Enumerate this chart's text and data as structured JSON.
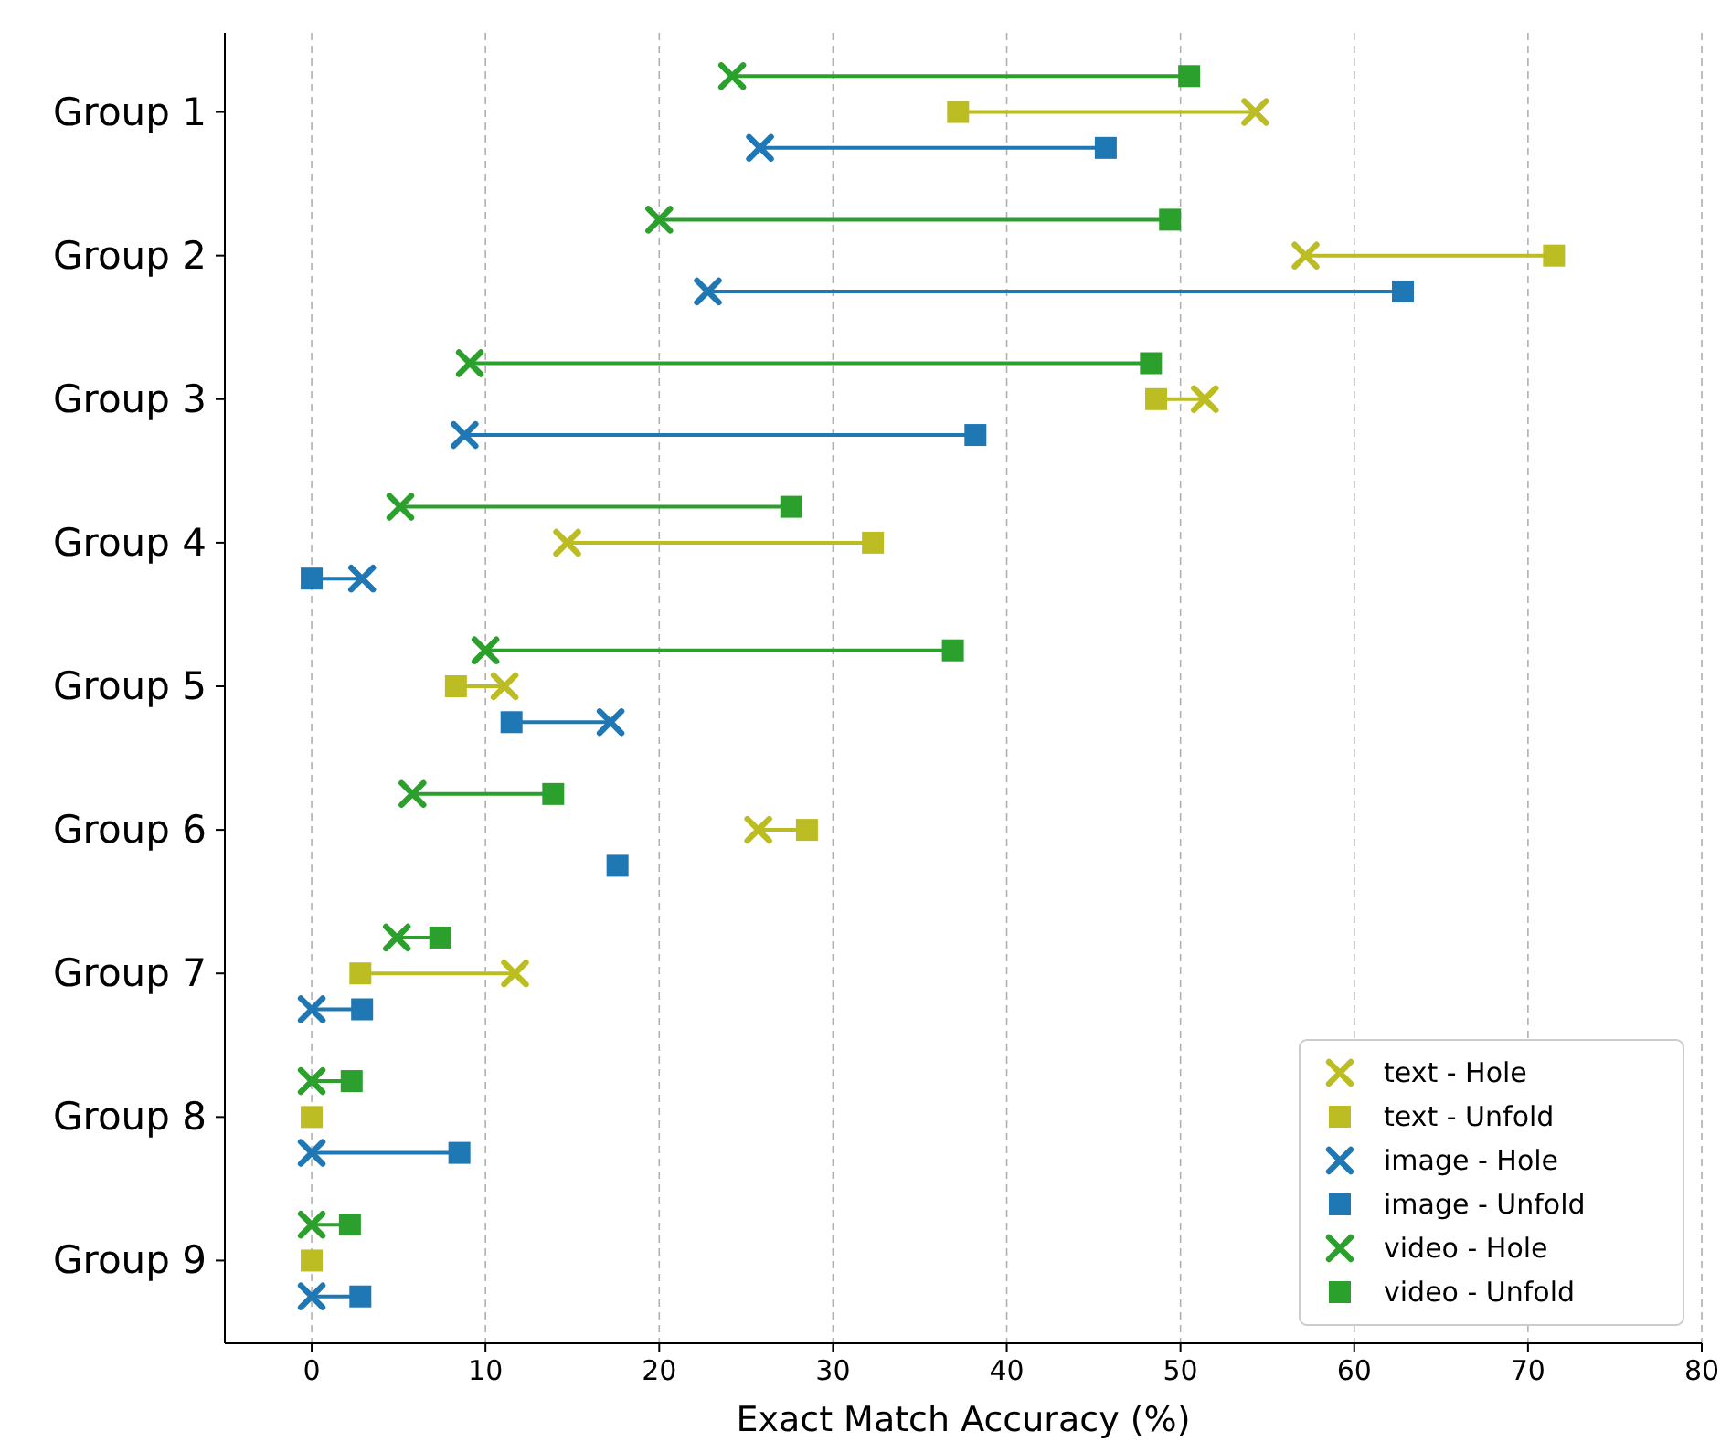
{
  "chart_data": {
    "type": "scatter",
    "orientation": "horizontal",
    "xlabel": "Exact Match Accuracy (%)",
    "categories": [
      "Group 1",
      "Group 2",
      "Group 3",
      "Group 4",
      "Group 5",
      "Group 6",
      "Group 7",
      "Group 8",
      "Group 9"
    ],
    "xlim": [
      -5,
      80
    ],
    "xticks": [
      0,
      10,
      20,
      30,
      40,
      50,
      60,
      70,
      80
    ],
    "grid": "x",
    "legend": "bottom right",
    "series": [
      {
        "name": "text - Hole",
        "color": "#bcbd22",
        "marker": "cross",
        "values": [
          54.3,
          57.2,
          51.4,
          14.7,
          11.1,
          25.7,
          11.7,
          null,
          null
        ]
      },
      {
        "name": "text - Unfold",
        "color": "#bcbd22",
        "marker": "square",
        "values": [
          37.2,
          71.5,
          48.6,
          32.3,
          8.3,
          28.5,
          2.8,
          0,
          0
        ]
      },
      {
        "name": "image - Hole",
        "color": "#1f77b4",
        "marker": "cross",
        "values": [
          25.8,
          22.8,
          8.8,
          2.9,
          17.2,
          null,
          0,
          0,
          0
        ]
      },
      {
        "name": "image - Unfold",
        "color": "#1f77b4",
        "marker": "square",
        "values": [
          45.7,
          62.8,
          38.2,
          0,
          11.5,
          17.6,
          2.9,
          8.5,
          2.8
        ]
      },
      {
        "name": "video - Hole",
        "color": "#2ca02c",
        "marker": "cross",
        "values": [
          24.2,
          20.0,
          9.1,
          5.1,
          10.0,
          5.8,
          4.9,
          0,
          0
        ]
      },
      {
        "name": "video - Unfold",
        "color": "#2ca02c",
        "marker": "square",
        "values": [
          50.5,
          49.4,
          48.3,
          27.6,
          36.9,
          13.9,
          7.4,
          2.3,
          2.2
        ]
      }
    ]
  }
}
